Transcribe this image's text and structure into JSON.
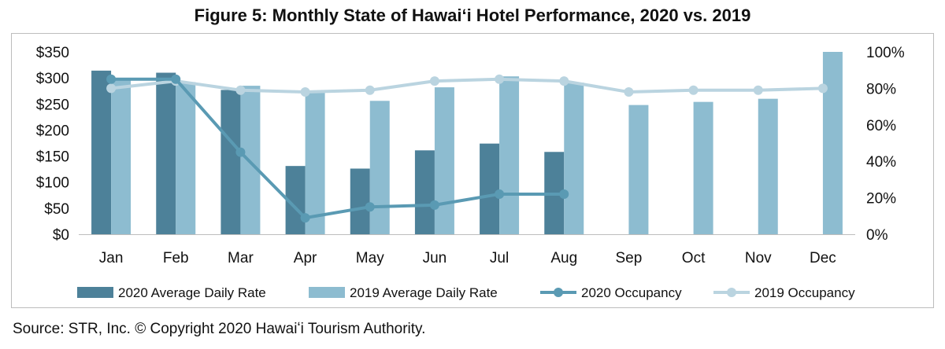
{
  "title": "Figure 5: Monthly State of Hawaiʻi Hotel Performance, 2020 vs. 2019",
  "source": "Source: STR, Inc. © Copyright 2020 Hawaiʻi Tourism Authority.",
  "colors": {
    "adr_2020": "#4d8199",
    "adr_2019": "#8dbcd0",
    "occ_2020": "#5a9ab3",
    "occ_2019": "#bad4e0"
  },
  "chart_data": {
    "type": "bar",
    "title": "Figure 5: Monthly State of Hawaiʻi Hotel Performance, 2020 vs. 2019",
    "categories": [
      "Jan",
      "Feb",
      "Mar",
      "Apr",
      "May",
      "Jun",
      "Jul",
      "Aug",
      "Sep",
      "Oct",
      "Nov",
      "Dec"
    ],
    "y_left": {
      "ylim": [
        0,
        350
      ],
      "ticks": [
        "$0",
        "$50",
        "$100",
        "$150",
        "$200",
        "$250",
        "$300",
        "$350"
      ]
    },
    "y_right": {
      "ylim": [
        0,
        100
      ],
      "ticks": [
        "0%",
        "20%",
        "40%",
        "60%",
        "80%",
        "100%"
      ]
    },
    "series": [
      {
        "name": "2020 Average Daily Rate",
        "kind": "bar",
        "axis": "left",
        "values": [
          314,
          310,
          277,
          131,
          126,
          161,
          174,
          158,
          null,
          null,
          null,
          null
        ]
      },
      {
        "name": "2019 Average Daily Rate",
        "kind": "bar",
        "axis": "left",
        "values": [
          298,
          292,
          285,
          273,
          256,
          282,
          303,
          291,
          248,
          254,
          260,
          350
        ]
      },
      {
        "name": "2020 Occupancy",
        "kind": "line",
        "axis": "right",
        "values": [
          85,
          85,
          45,
          9,
          15,
          16,
          22,
          22,
          null,
          null,
          null,
          null
        ]
      },
      {
        "name": "2019 Occupancy",
        "kind": "line",
        "axis": "right",
        "values": [
          80,
          84,
          79,
          78,
          79,
          84,
          85,
          84,
          78,
          79,
          79,
          80
        ]
      }
    ],
    "grid": false,
    "legend": "bottom"
  }
}
